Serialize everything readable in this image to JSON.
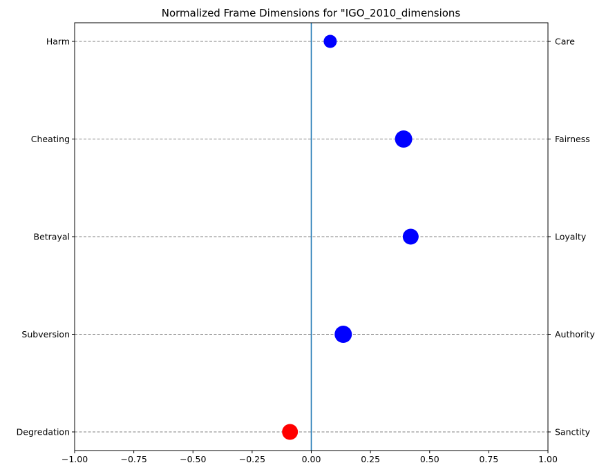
{
  "chart_data": {
    "type": "scatter",
    "title": "Normalized Frame Dimensions for \"IGO_2010_dimensions",
    "xlim": [
      -1.0,
      1.0
    ],
    "xticks": [
      "−1.00",
      "−0.75",
      "−0.50",
      "−0.25",
      "0.00",
      "0.25",
      "0.50",
      "0.75",
      "1.00"
    ],
    "xtick_values": [
      -1.0,
      -0.75,
      -0.5,
      -0.25,
      0.0,
      0.25,
      0.5,
      0.75,
      1.0
    ],
    "left_labels": [
      "Harm",
      "Cheating",
      "Betrayal",
      "Subversion",
      "Degredation"
    ],
    "right_labels": [
      "Care",
      "Fairness",
      "Loyalty",
      "Authority",
      "Sanctity"
    ],
    "points": [
      {
        "dimension": "Care",
        "value": 0.08,
        "marker": "small",
        "color": "#0000ff"
      },
      {
        "dimension": "Fairness",
        "value": 0.39,
        "marker": "large",
        "color": "#0000ff"
      },
      {
        "dimension": "Loyalty",
        "value": 0.42,
        "marker": "medium",
        "color": "#0000ff"
      },
      {
        "dimension": "Authority",
        "value": 0.135,
        "marker": "large",
        "color": "#0000ff"
      },
      {
        "dimension": "Sanctity",
        "value": -0.09,
        "marker": "medium",
        "color": "#ff0000"
      }
    ],
    "zero_line_color": "#1f77b4",
    "gridlines": "horizontal dashed"
  }
}
